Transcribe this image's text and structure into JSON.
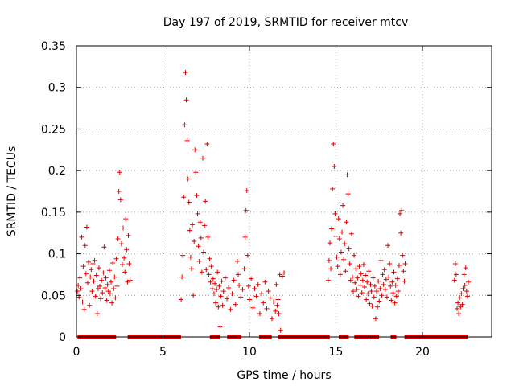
{
  "chart_data": {
    "type": "scatter",
    "title": "Day 197 of 2019, SRMTID for receiver mtcv",
    "xlabel": "GPS time / hours",
    "ylabel": "SRMTID / TECUs",
    "xlim": [
      0,
      24
    ],
    "ylim": [
      0,
      0.35
    ],
    "x_ticks": [
      0,
      5,
      10,
      15,
      20
    ],
    "x_tick_labels": [
      "0",
      "5",
      "10",
      "15",
      "20"
    ],
    "y_ticks": [
      0,
      0.05,
      0.1,
      0.15,
      0.2,
      0.25,
      0.3,
      0.35
    ],
    "y_tick_labels": [
      "0",
      "0.05",
      "0.1",
      "0.15",
      "0.2",
      "0.25",
      "0.3",
      "0.35"
    ],
    "grid": true,
    "marker": "+",
    "color": "#dd0000",
    "series": [
      {
        "name": "SRMTID",
        "points": [
          [
            0.05,
            0.055
          ],
          [
            0.1,
            0.062
          ],
          [
            0.15,
            0.048
          ],
          [
            0.2,
            0.071
          ],
          [
            0.25,
            0.058
          ],
          [
            0.3,
            0.12
          ],
          [
            0.35,
            0.042
          ],
          [
            0.4,
            0.085
          ],
          [
            0.45,
            0.033
          ],
          [
            0.5,
            0.11
          ],
          [
            0.55,
            0.076
          ],
          [
            0.6,
            0.132
          ],
          [
            0.65,
            0.065
          ],
          [
            0.7,
            0.09
          ],
          [
            0.75,
            0.038
          ],
          [
            0.8,
            0.072
          ],
          [
            0.85,
            0.081
          ],
          [
            0.9,
            0.055
          ],
          [
            0.95,
            0.088
          ],
          [
            1.0,
            0.067
          ],
          [
            1.05,
            0.092
          ],
          [
            1.1,
            0.049
          ],
          [
            1.15,
            0.074
          ],
          [
            1.2,
            0.028
          ],
          [
            1.25,
            0.058
          ],
          [
            1.3,
            0.083
          ],
          [
            1.35,
            0.061
          ],
          [
            1.4,
            0.046
          ],
          [
            1.45,
            0.068
          ],
          [
            1.5,
            0.053
          ],
          [
            1.55,
            0.077
          ],
          [
            1.6,
            0.108
          ],
          [
            1.65,
            0.059
          ],
          [
            1.7,
            0.071
          ],
          [
            1.75,
            0.044
          ],
          [
            1.8,
            0.063
          ],
          [
            1.85,
            0.055
          ],
          [
            1.9,
            0.08
          ],
          [
            1.95,
            0.052
          ],
          [
            2.0,
            0.066
          ],
          [
            2.05,
            0.041
          ],
          [
            2.1,
            0.089
          ],
          [
            2.15,
            0.058
          ],
          [
            2.2,
            0.072
          ],
          [
            2.25,
            0.047
          ],
          [
            2.3,
            0.094
          ],
          [
            2.35,
            0.061
          ],
          [
            2.4,
            0.118
          ],
          [
            2.45,
            0.175
          ],
          [
            2.5,
            0.198
          ],
          [
            2.55,
            0.165
          ],
          [
            2.6,
            0.112
          ],
          [
            2.65,
            0.087
          ],
          [
            2.7,
            0.131
          ],
          [
            2.75,
            0.095
          ],
          [
            2.8,
            0.078
          ],
          [
            2.85,
            0.142
          ],
          [
            2.9,
            0.105
          ],
          [
            2.95,
            0.066
          ],
          [
            3.0,
            0.122
          ],
          [
            3.05,
            0.088
          ],
          [
            3.1,
            0.068
          ],
          [
            6.05,
            0.045
          ],
          [
            6.1,
            0.072
          ],
          [
            6.15,
            0.098
          ],
          [
            6.2,
            0.168
          ],
          [
            6.25,
            0.255
          ],
          [
            6.3,
            0.318
          ],
          [
            6.35,
            0.285
          ],
          [
            6.4,
            0.236
          ],
          [
            6.45,
            0.19
          ],
          [
            6.5,
            0.162
          ],
          [
            6.55,
            0.128
          ],
          [
            6.6,
            0.096
          ],
          [
            6.65,
            0.082
          ],
          [
            6.7,
            0.135
          ],
          [
            6.75,
            0.05
          ],
          [
            6.8,
            0.115
          ],
          [
            6.85,
            0.225
          ],
          [
            6.9,
            0.198
          ],
          [
            6.95,
            0.17
          ],
          [
            7.0,
            0.148
          ],
          [
            7.05,
            0.109
          ],
          [
            7.1,
            0.091
          ],
          [
            7.15,
            0.138
          ],
          [
            7.2,
            0.119
          ],
          [
            7.25,
            0.078
          ],
          [
            7.3,
            0.215
          ],
          [
            7.35,
            0.102
          ],
          [
            7.4,
            0.134
          ],
          [
            7.45,
            0.163
          ],
          [
            7.5,
            0.081
          ],
          [
            7.55,
            0.232
          ],
          [
            7.6,
            0.12
          ],
          [
            7.65,
            0.075
          ],
          [
            7.7,
            0.094
          ],
          [
            7.75,
            0.066
          ],
          [
            7.8,
            0.085
          ],
          [
            7.85,
            0.058
          ],
          [
            7.9,
            0.07
          ],
          [
            7.95,
            0.052
          ],
          [
            8.0,
            0.064
          ],
          [
            8.05,
            0.041
          ],
          [
            8.1,
            0.057
          ],
          [
            8.15,
            0.078
          ],
          [
            8.2,
            0.036
          ],
          [
            8.25,
            0.061
          ],
          [
            8.3,
            0.012
          ],
          [
            8.35,
            0.049
          ],
          [
            8.4,
            0.067
          ],
          [
            8.45,
            0.038
          ],
          [
            8.5,
            0.055
          ],
          [
            8.6,
            0.071
          ],
          [
            8.7,
            0.046
          ],
          [
            8.8,
            0.059
          ],
          [
            8.9,
            0.033
          ],
          [
            9.0,
            0.052
          ],
          [
            9.1,
            0.068
          ],
          [
            9.2,
            0.039
          ],
          [
            9.3,
            0.091
          ],
          [
            9.35,
            0.075
          ],
          [
            9.4,
            0.062
          ],
          [
            9.5,
            0.048
          ],
          [
            9.6,
            0.057
          ],
          [
            9.7,
            0.082
          ],
          [
            9.75,
            0.12
          ],
          [
            9.8,
            0.152
          ],
          [
            9.85,
            0.176
          ],
          [
            9.9,
            0.098
          ],
          [
            9.95,
            0.061
          ],
          [
            10.0,
            0.045
          ],
          [
            10.1,
            0.07
          ],
          [
            10.2,
            0.035
          ],
          [
            10.3,
            0.058
          ],
          [
            10.4,
            0.049
          ],
          [
            10.5,
            0.063
          ],
          [
            10.6,
            0.028
          ],
          [
            10.7,
            0.052
          ],
          [
            10.8,
            0.041
          ],
          [
            10.9,
            0.066
          ],
          [
            11.0,
            0.034
          ],
          [
            11.1,
            0.055
          ],
          [
            11.2,
            0.047
          ],
          [
            11.3,
            0.022
          ],
          [
            11.4,
            0.042
          ],
          [
            11.5,
            0.031
          ],
          [
            11.55,
            0.063
          ],
          [
            11.6,
            0.038
          ],
          [
            11.65,
            0.045
          ],
          [
            11.7,
            0.028
          ],
          [
            11.75,
            0.075
          ],
          [
            11.8,
            0.008
          ],
          [
            11.9,
            0.073
          ],
          [
            12.0,
            0.077
          ],
          [
            14.55,
            0.068
          ],
          [
            14.6,
            0.092
          ],
          [
            14.65,
            0.113
          ],
          [
            14.7,
            0.082
          ],
          [
            14.75,
            0.13
          ],
          [
            14.8,
            0.178
          ],
          [
            14.85,
            0.232
          ],
          [
            14.9,
            0.205
          ],
          [
            14.95,
            0.148
          ],
          [
            15.0,
            0.121
          ],
          [
            15.05,
            0.096
          ],
          [
            15.1,
            0.085
          ],
          [
            15.15,
            0.142
          ],
          [
            15.2,
            0.118
          ],
          [
            15.25,
            0.075
          ],
          [
            15.3,
            0.102
          ],
          [
            15.35,
            0.126
          ],
          [
            15.4,
            0.158
          ],
          [
            15.45,
            0.093
          ],
          [
            15.5,
            0.112
          ],
          [
            15.55,
            0.079
          ],
          [
            15.6,
            0.138
          ],
          [
            15.65,
            0.195
          ],
          [
            15.7,
            0.172
          ],
          [
            15.75,
            0.106
          ],
          [
            15.8,
            0.088
          ],
          [
            15.85,
            0.068
          ],
          [
            15.9,
            0.124
          ],
          [
            15.95,
            0.072
          ],
          [
            16.0,
            0.055
          ],
          [
            16.05,
            0.098
          ],
          [
            16.1,
            0.065
          ],
          [
            16.15,
            0.082
          ],
          [
            16.2,
            0.057
          ],
          [
            16.25,
            0.071
          ],
          [
            16.3,
            0.049
          ],
          [
            16.35,
            0.085
          ],
          [
            16.4,
            0.062
          ],
          [
            16.45,
            0.076
          ],
          [
            16.5,
            0.053
          ],
          [
            16.55,
            0.068
          ],
          [
            16.6,
            0.087
          ],
          [
            16.65,
            0.06
          ],
          [
            16.7,
            0.074
          ],
          [
            16.75,
            0.045
          ],
          [
            16.8,
            0.066
          ],
          [
            16.85,
            0.052
          ],
          [
            16.9,
            0.079
          ],
          [
            16.95,
            0.04
          ],
          [
            17.0,
            0.063
          ],
          [
            17.05,
            0.055
          ],
          [
            17.1,
            0.037
          ],
          [
            17.15,
            0.071
          ],
          [
            17.2,
            0.048
          ],
          [
            17.25,
            0.061
          ],
          [
            17.3,
            0.022
          ],
          [
            17.35,
            0.055
          ],
          [
            17.4,
            0.036
          ],
          [
            17.45,
            0.067
          ],
          [
            17.5,
            0.043
          ],
          [
            17.55,
            0.058
          ],
          [
            17.6,
            0.092
          ],
          [
            17.65,
            0.05
          ],
          [
            17.7,
            0.075
          ],
          [
            17.75,
            0.063
          ],
          [
            17.8,
            0.081
          ],
          [
            17.85,
            0.057
          ],
          [
            17.9,
            0.069
          ],
          [
            17.95,
            0.048
          ],
          [
            18.0,
            0.11
          ],
          [
            18.05,
            0.072
          ],
          [
            18.1,
            0.088
          ],
          [
            18.15,
            0.061
          ],
          [
            18.2,
            0.044
          ],
          [
            18.25,
            0.066
          ],
          [
            18.3,
            0.053
          ],
          [
            18.35,
            0.078
          ],
          [
            18.4,
            0.041
          ],
          [
            18.45,
            0.062
          ],
          [
            18.5,
            0.049
          ],
          [
            18.55,
            0.07
          ],
          [
            18.6,
            0.055
          ],
          [
            18.65,
            0.086
          ],
          [
            18.7,
            0.148
          ],
          [
            18.75,
            0.125
          ],
          [
            18.8,
            0.152
          ],
          [
            18.85,
            0.098
          ],
          [
            18.9,
            0.079
          ],
          [
            18.95,
            0.067
          ],
          [
            19.0,
            0.088
          ],
          [
            21.85,
            0.068
          ],
          [
            21.9,
            0.088
          ],
          [
            21.95,
            0.075
          ],
          [
            22.0,
            0.034
          ],
          [
            22.05,
            0.041
          ],
          [
            22.1,
            0.028
          ],
          [
            22.15,
            0.047
          ],
          [
            22.2,
            0.036
          ],
          [
            22.25,
            0.052
          ],
          [
            22.3,
            0.039
          ],
          [
            22.35,
            0.058
          ],
          [
            22.4,
            0.075
          ],
          [
            22.45,
            0.062
          ],
          [
            22.5,
            0.083
          ],
          [
            22.55,
            0.055
          ],
          [
            22.6,
            0.049
          ],
          [
            22.65,
            0.066
          ]
        ]
      }
    ],
    "zero_segments": [
      [
        0.2,
        0.25
      ],
      [
        0.45,
        0.5
      ],
      [
        0.65,
        0.7
      ],
      [
        0.9,
        0.95
      ],
      [
        1.15,
        1.2
      ],
      [
        1.35,
        1.4
      ],
      [
        1.6,
        1.65
      ],
      [
        1.85,
        1.9
      ],
      [
        2.05,
        2.15
      ],
      [
        3.1,
        5.9
      ],
      [
        7.85,
        7.9
      ],
      [
        8.1,
        8.15
      ],
      [
        8.85,
        8.9
      ],
      [
        9.1,
        9.15
      ],
      [
        9.35,
        9.4
      ],
      [
        10.7,
        10.75
      ],
      [
        10.8,
        10.85
      ],
      [
        11.05,
        11.15
      ],
      [
        11.8,
        14.5
      ],
      [
        15.3,
        15.35
      ],
      [
        15.55,
        15.6
      ],
      [
        16.2,
        16.25
      ],
      [
        16.45,
        16.5
      ],
      [
        16.7,
        16.75
      ],
      [
        17.05,
        17.1
      ],
      [
        17.3,
        17.35
      ],
      [
        18.3,
        18.35
      ],
      [
        19.1,
        22.2
      ],
      [
        22.45,
        22.5
      ]
    ]
  }
}
